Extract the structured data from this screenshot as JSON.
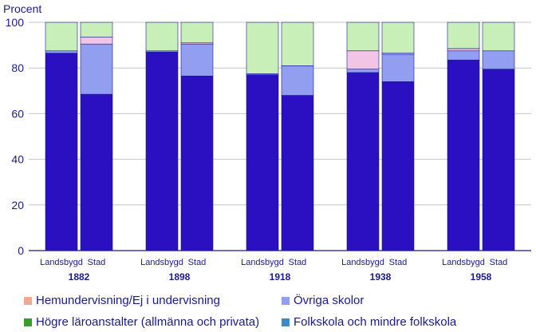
{
  "chart_data": {
    "type": "bar",
    "stacked": true,
    "ylabel": "Procent",
    "ylim": [
      0,
      100
    ],
    "yticks": [
      0,
      20,
      40,
      60,
      80,
      100
    ],
    "grid": true,
    "legend_position": "bottom",
    "groups": [
      {
        "year": "1882",
        "year_bold": true
      },
      {
        "year": "1898",
        "year_bold": true
      },
      {
        "year": "1918",
        "year_bold": true
      },
      {
        "year": "1938",
        "year_bold": false
      },
      {
        "year": "1958",
        "year_bold": true
      }
    ],
    "categories": [
      "Landsbygd",
      "Stad",
      "Landsbygd",
      "Stad",
      "Landsbygd",
      "Stad",
      "Landsbygd",
      "Stad",
      "Landsbygd",
      "Stad"
    ],
    "series": [
      {
        "name": "Folkskola och mindre folkskola",
        "color": "#2a10c0",
        "values": [
          86.5,
          68.5,
          87,
          76.5,
          77,
          68,
          78,
          74,
          83.5,
          79.5
        ]
      },
      {
        "name": "Övriga skolor",
        "color": "#929ef0",
        "values": [
          1,
          22,
          0.5,
          14,
          0.5,
          13,
          1.5,
          12,
          4,
          8
        ]
      },
      {
        "name": "Hemundervisning/Ej i undervisning",
        "color": "#f2c4e6",
        "values": [
          0,
          3,
          0,
          0.5,
          0,
          0,
          8,
          0.5,
          1,
          0
        ]
      },
      {
        "name": "Högre läroanstalter (allmänna och privata)",
        "color": "#c8efb8",
        "values": [
          12.5,
          6.5,
          12.5,
          9,
          22.5,
          19,
          12.5,
          13.5,
          11.5,
          12.5
        ]
      }
    ],
    "legend": [
      {
        "label": "Hemundervisning/Ej i undervisning",
        "color": "#f5a890"
      },
      {
        "label": "Övriga skolor",
        "color": "#929ef0"
      },
      {
        "label": "Högre läroanstalter (allmänna och privata)",
        "color": "#3a9c30"
      },
      {
        "label": "Folkskola och mindre folkskola",
        "color": "#3f88c0"
      }
    ]
  }
}
